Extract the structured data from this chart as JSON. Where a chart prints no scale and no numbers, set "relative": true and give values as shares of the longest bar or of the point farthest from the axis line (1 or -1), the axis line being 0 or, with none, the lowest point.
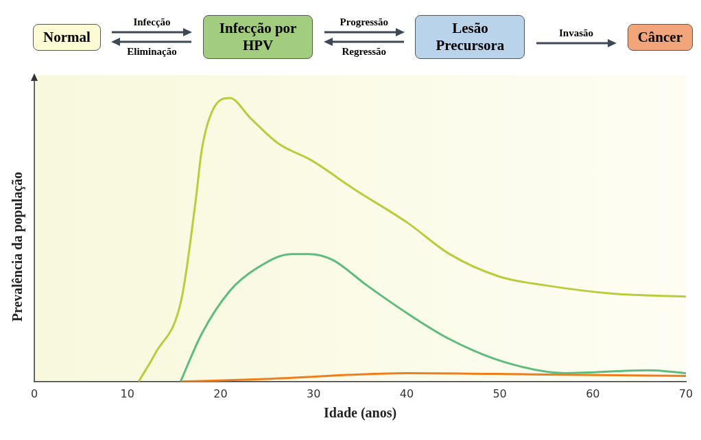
{
  "chart_data": {
    "type": "line",
    "relative": true,
    "xlabel": "Idade (anos)",
    "ylabel": "Prevalência da população",
    "xlim": [
      0,
      70
    ],
    "xticks": [
      0,
      10,
      20,
      30,
      40,
      50,
      60,
      70
    ],
    "grid": false,
    "legend": false,
    "marker": "none",
    "line_style": "solid",
    "annotations": [
      "Normal",
      "Infecção",
      "Eliminação",
      "Infecção por HPV",
      "Progressão",
      "Regressão",
      "Lesão Precursora",
      "Invasão",
      "Câncer"
    ],
    "series": [
      {
        "color": "#b8cc3c",
        "x": [
          11.2,
          13,
          15.8,
          17.3,
          18,
          19.2,
          21,
          23.2,
          26.2,
          29.8,
          34.3,
          40.1,
          44.6,
          50,
          54.8,
          62.2,
          70
        ],
        "values": [
          0,
          0.1,
          0.29,
          0.63,
          0.82,
          0.96,
          1,
          0.93,
          0.84,
          0.78,
          0.68,
          0.56,
          0.45,
          0.37,
          0.34,
          0.31,
          0.3
        ]
      },
      {
        "color": "#5dbb7c",
        "x": [
          15.7,
          18,
          21,
          23.9,
          27.6,
          29.5,
          32,
          35.7,
          40.1,
          44.6,
          50.4,
          57,
          66,
          70
        ],
        "values": [
          0,
          0.17,
          0.32,
          0.4,
          0.45,
          0.45,
          0.43,
          0.34,
          0.24,
          0.15,
          0.07,
          0.03,
          0.04,
          0.03
        ]
      },
      {
        "color": "#f07d1a",
        "x": [
          15.8,
          25.4,
          40,
          55,
          70
        ],
        "values": [
          0,
          0.01,
          0.03,
          0.025,
          0.02
        ]
      }
    ]
  }
}
